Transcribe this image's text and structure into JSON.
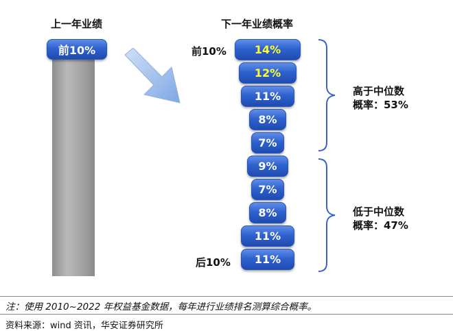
{
  "left": {
    "title": "上一年业绩",
    "top_label": "前10%"
  },
  "right": {
    "title": "下一年业绩概率",
    "top_side_label": "前10%",
    "bottom_side_label": "后10%",
    "group_high": {
      "line1": "高于中位数",
      "line2": "概率：53%"
    },
    "group_low": {
      "line1": "低于中位数",
      "line2": "概率：47%"
    }
  },
  "chart_data": {
    "type": "bar",
    "title": "下一年业绩概率",
    "categories": [
      "前10%",
      "",
      "",
      "",
      "",
      "",
      "",
      "",
      "",
      "后10%"
    ],
    "values": [
      14,
      12,
      11,
      8,
      7,
      9,
      7,
      8,
      11,
      11
    ],
    "labels": [
      "14%",
      "12%",
      "11%",
      "8%",
      "7%",
      "9%",
      "7%",
      "8%",
      "11%",
      "11%"
    ],
    "highlight_indices": [
      0,
      1
    ],
    "highlight_color": "#ffff33",
    "bar_color": "#2f62cf"
  },
  "note": "注：使用 2010~2022 年权益基金数据，每年进行业绩排名测算综合概率。",
  "source": "资料来源：wind 资讯，华安证券研究所"
}
